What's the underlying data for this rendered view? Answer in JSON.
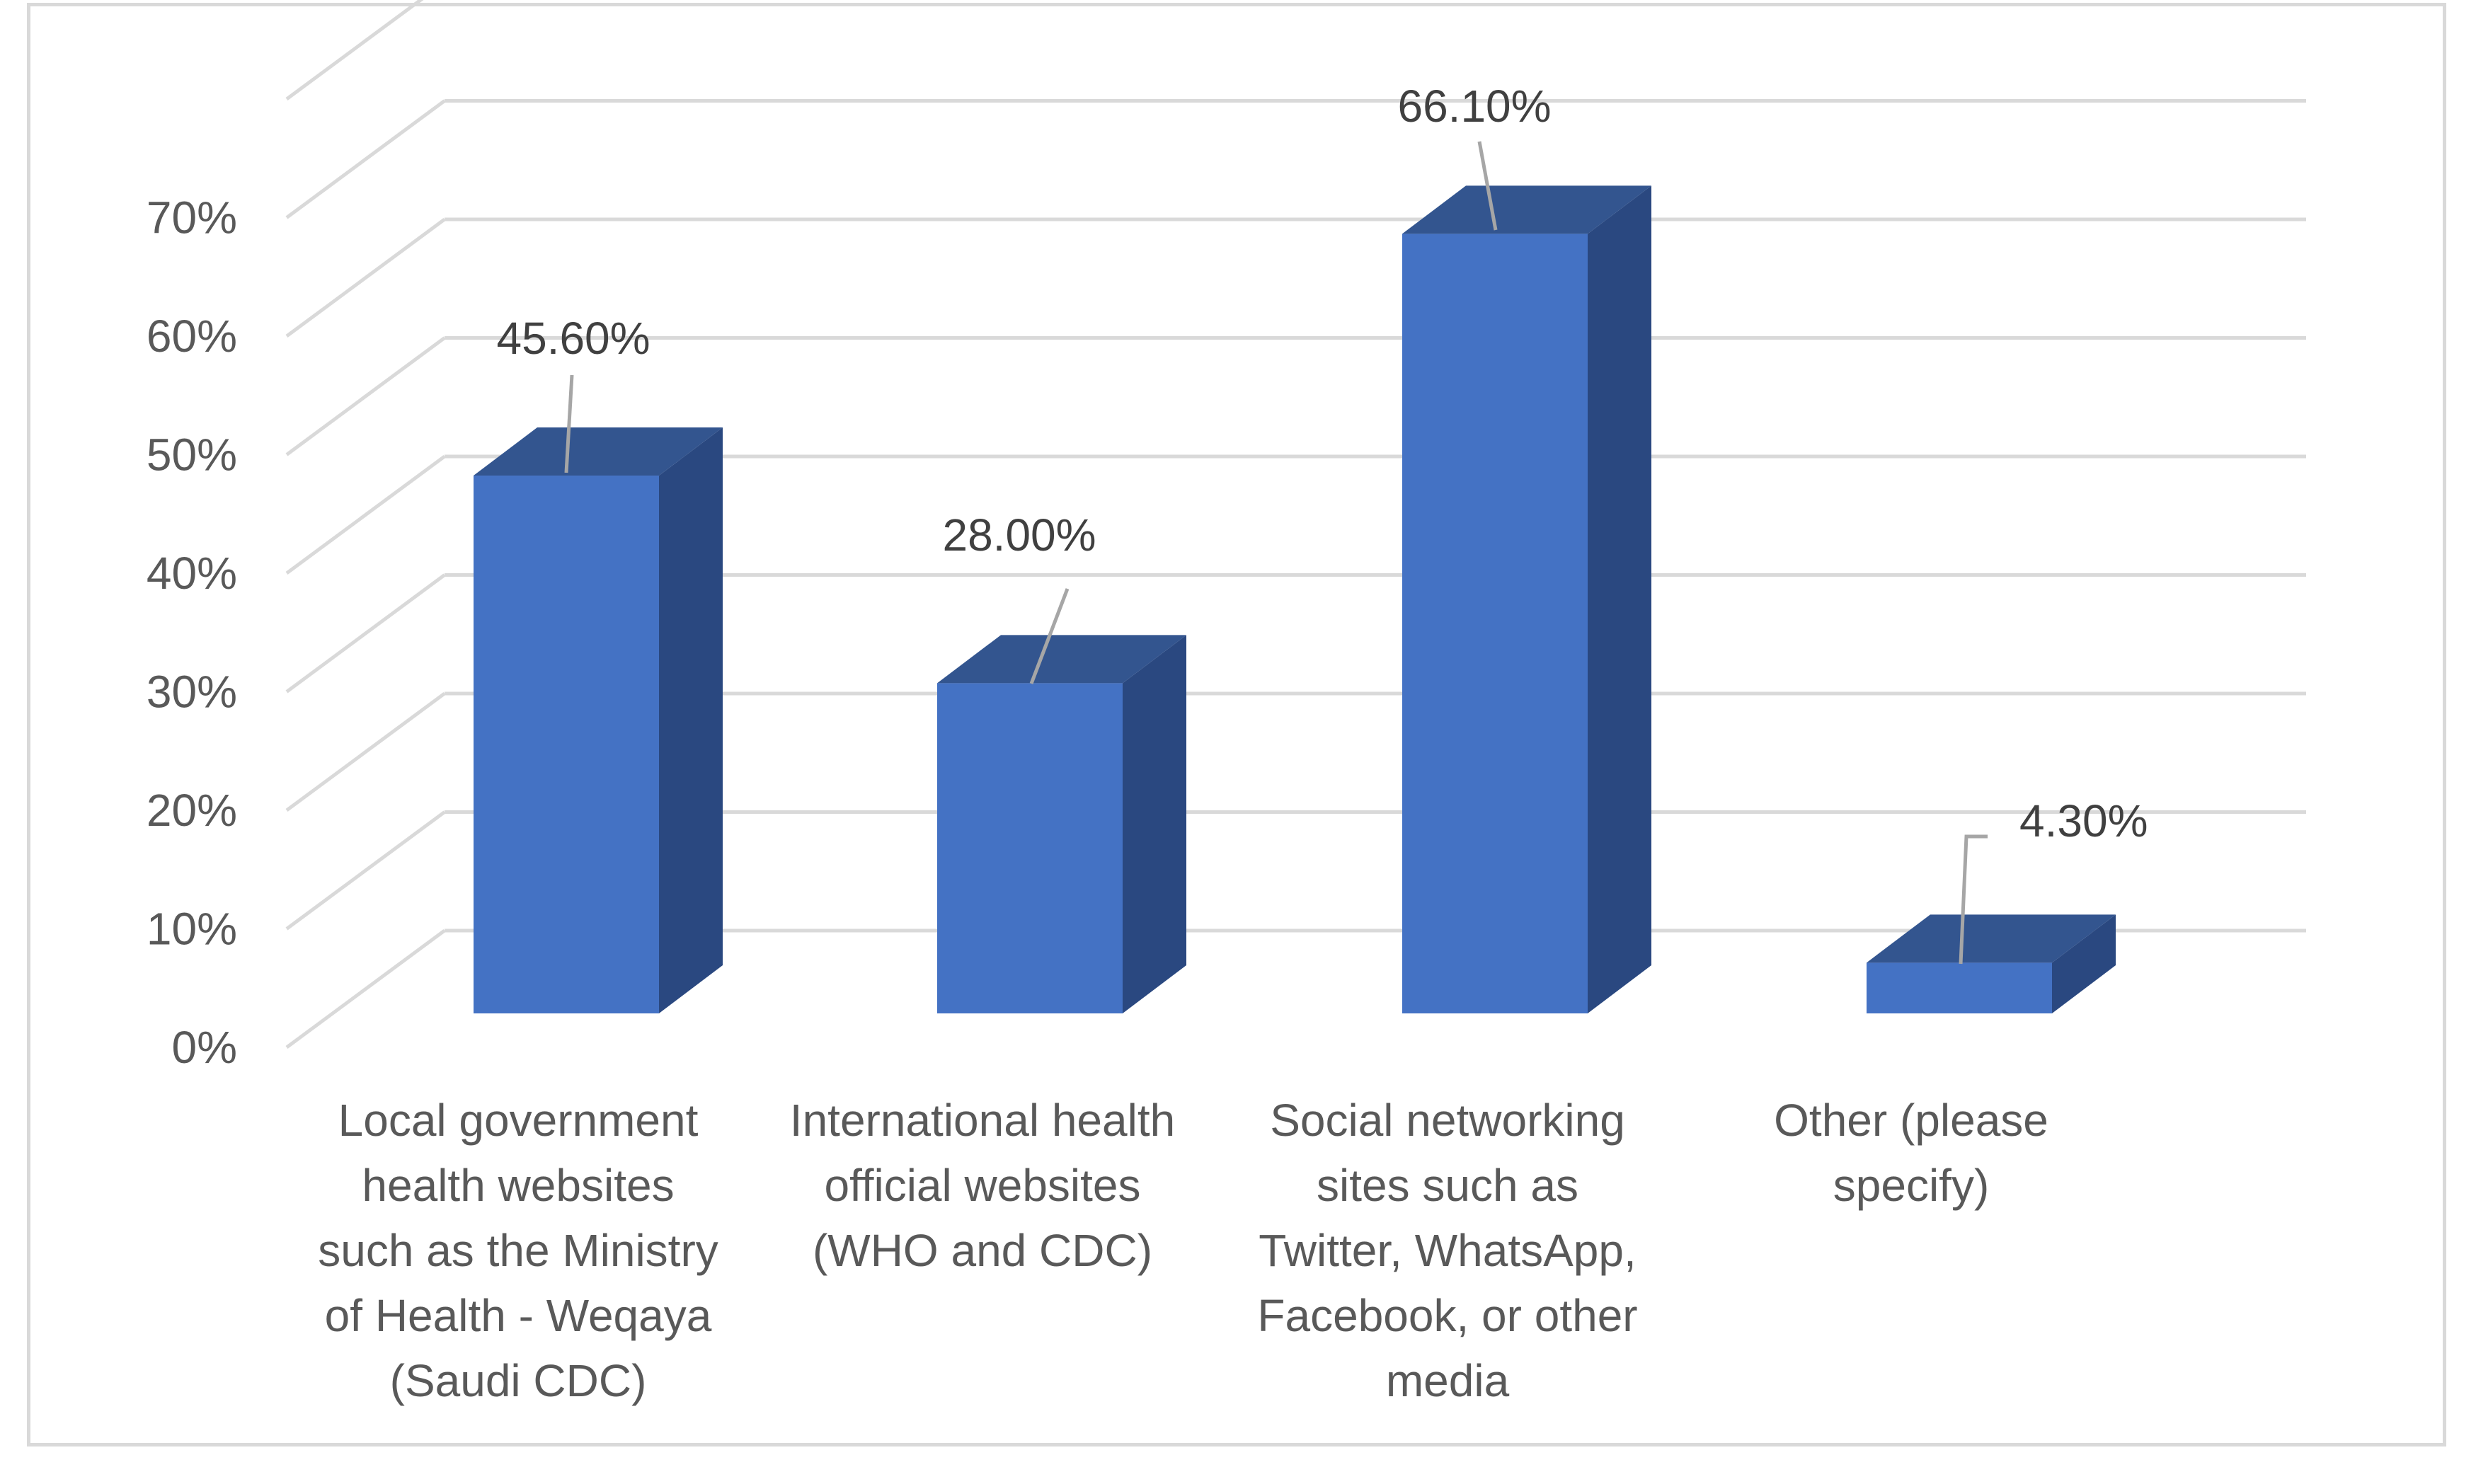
{
  "chart_data": {
    "type": "bar",
    "style": "3d-column",
    "title": "",
    "xlabel": "",
    "ylabel": "",
    "ylim": [
      0,
      0.8
    ],
    "y_ticks": [
      0,
      0.1,
      0.2,
      0.3,
      0.4,
      0.5,
      0.6,
      0.7
    ],
    "y_tick_labels": [
      "0%",
      "10%",
      "20%",
      "30%",
      "40%",
      "50%",
      "60%",
      "70%"
    ],
    "grid": true,
    "legend": "none",
    "categories": [
      "Local government health websites such as the Ministry of Health - Weqaya (Saudi CDC)",
      "International health official websites (WHO and CDC)",
      "Social networking sites such as Twitter, WhatsApp, Facebook, or other media",
      "Other (please specify)"
    ],
    "category_label_lines": [
      [
        "Local government",
        "health websites",
        "such as the Ministry",
        "of Health - Weqaya",
        "(Saudi CDC)"
      ],
      [
        "International health",
        "official websites",
        "(WHO and CDC)"
      ],
      [
        "Social networking",
        "sites such as",
        "Twitter, WhatsApp,",
        "Facebook, or other",
        "media"
      ],
      [
        "Other (please",
        "specify)"
      ]
    ],
    "values": [
      0.456,
      0.28,
      0.661,
      0.043
    ],
    "data_labels": [
      "45.60%",
      "28.00%",
      "66.10%",
      "4.30%"
    ],
    "colors": {
      "bar_front": "#4472c4",
      "bar_side": "#2a4880",
      "bar_top": "#33558f",
      "grid": "#d9d9d9",
      "text": "#595959",
      "leader": "#a6a6a6"
    }
  }
}
